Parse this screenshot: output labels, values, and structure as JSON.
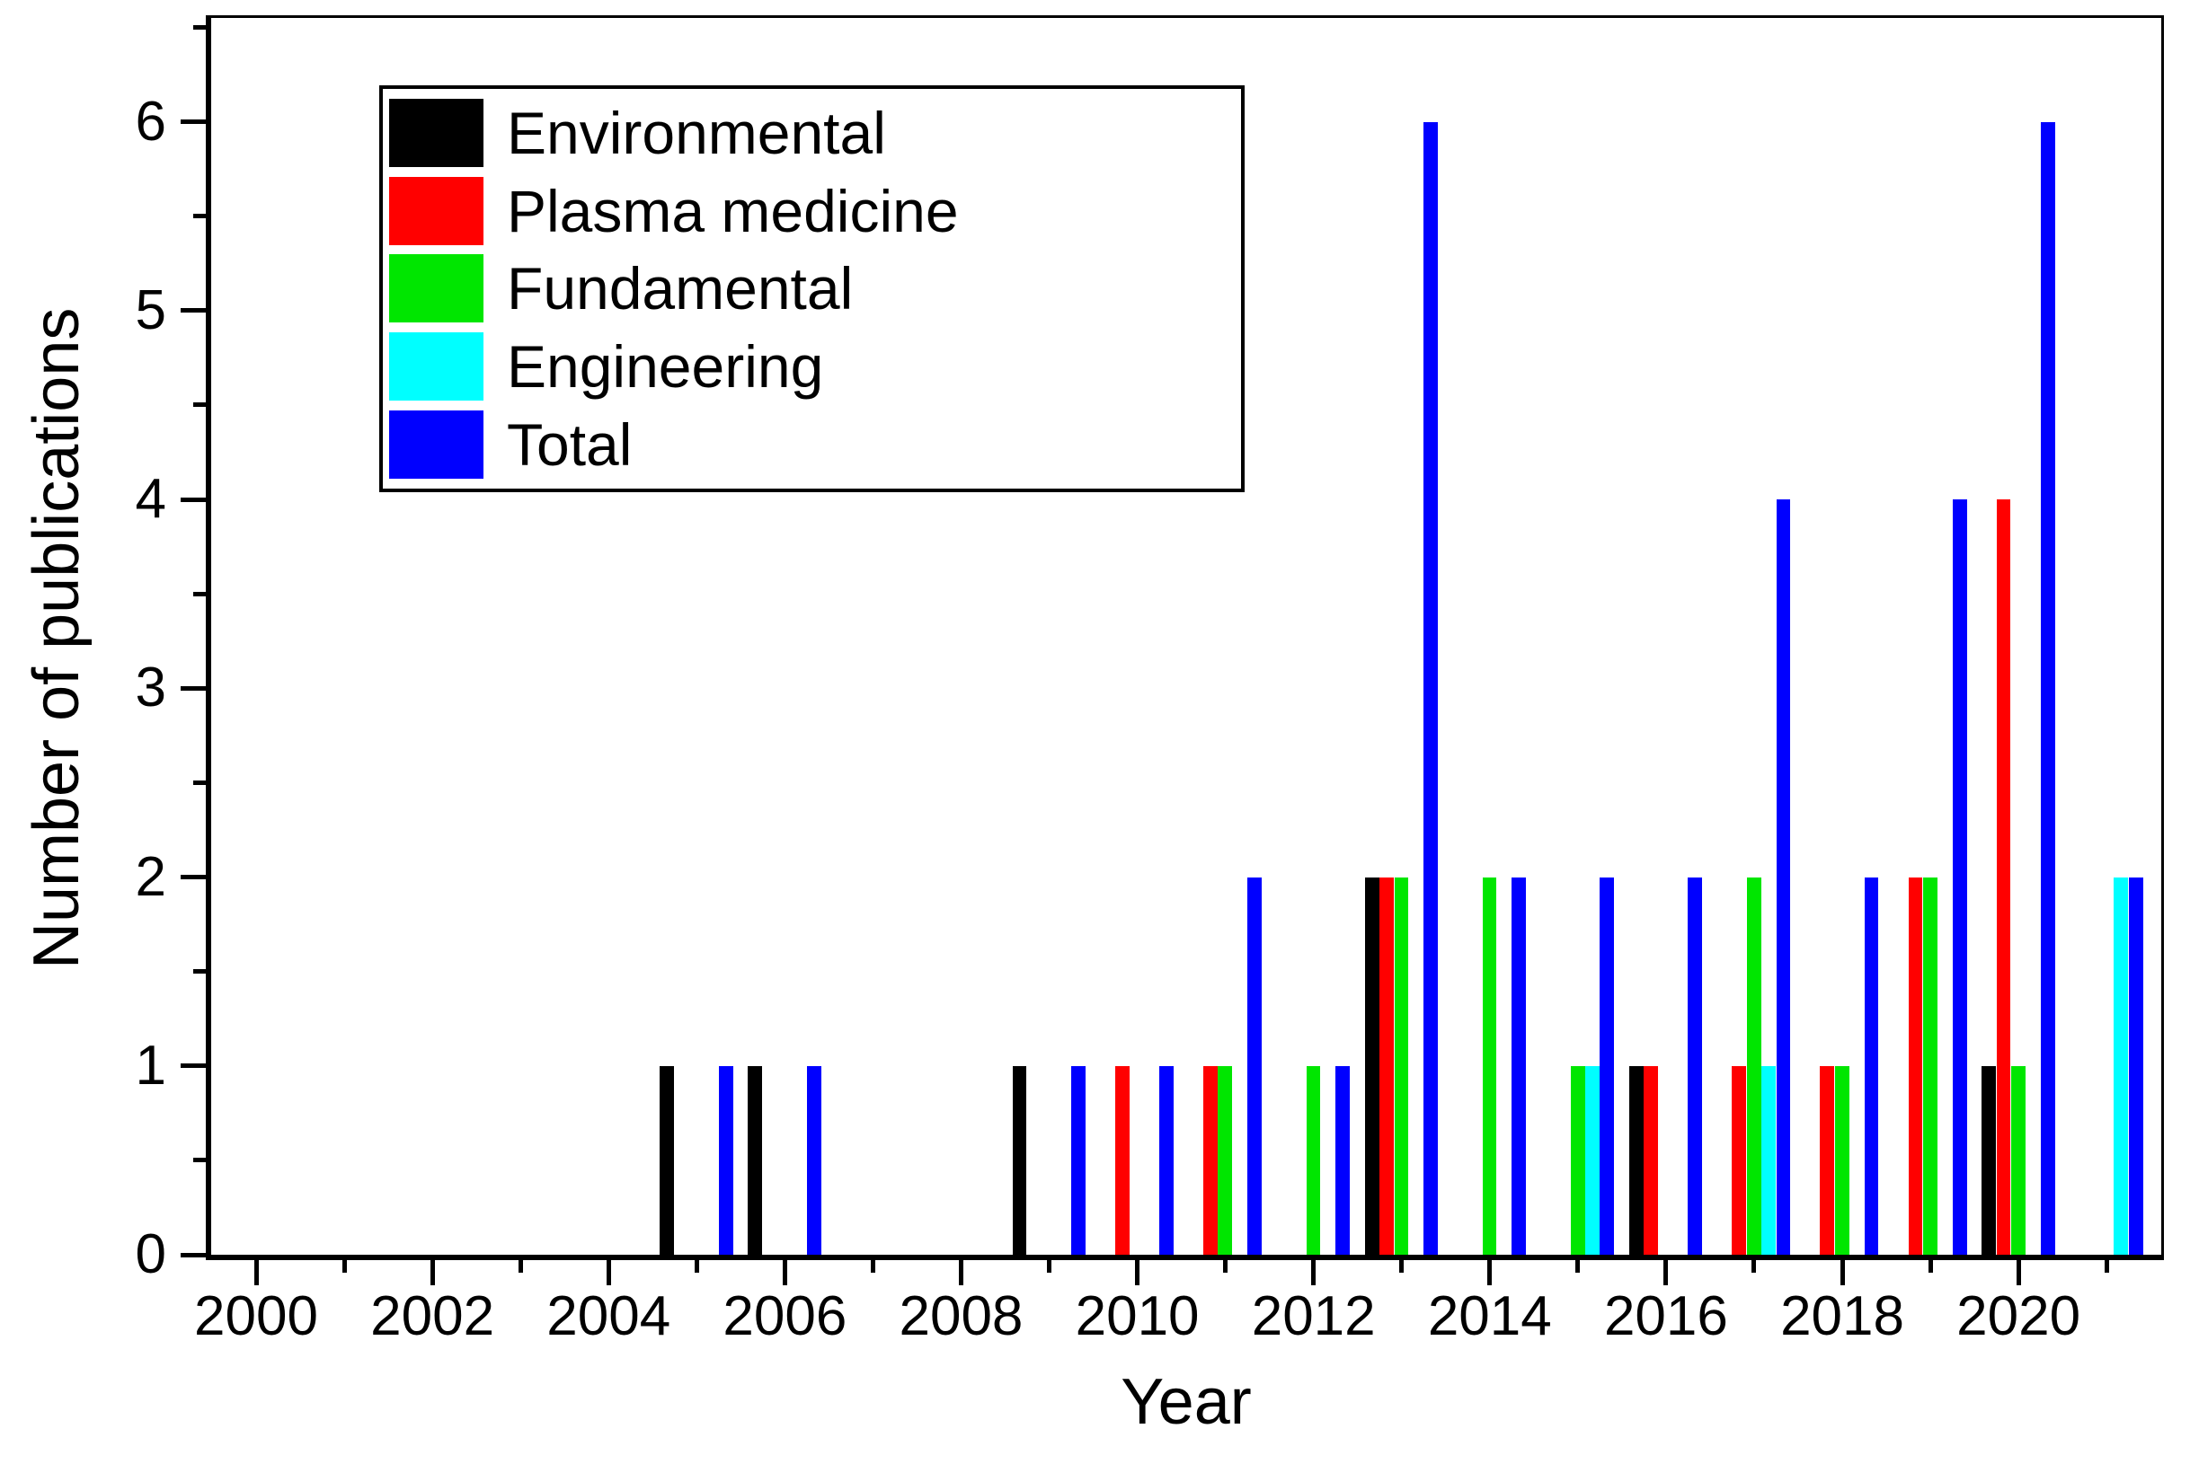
{
  "chart_data": {
    "type": "bar",
    "title": "",
    "xlabel": "Year",
    "ylabel": "Number of publications",
    "grid": false,
    "legend_position": "top-left-inside",
    "axis": {
      "x_min": 1999.49,
      "x_max": 2021.62,
      "y_min": 0,
      "y_max": 6.55,
      "x_major_ticks": [
        2000,
        2002,
        2004,
        2006,
        2008,
        2010,
        2012,
        2014,
        2016,
        2018,
        2020
      ],
      "x_minor_ticks": [
        2001,
        2003,
        2005,
        2007,
        2009,
        2011,
        2013,
        2015,
        2017,
        2019,
        2021
      ],
      "y_major_ticks": [
        0,
        1,
        2,
        3,
        4,
        5,
        6
      ],
      "y_minor_ticks": [
        0.5,
        1.5,
        2.5,
        3.5,
        4.5,
        5.5,
        6.5
      ]
    },
    "categories": [
      2000,
      2001,
      2002,
      2003,
      2004,
      2005,
      2006,
      2007,
      2008,
      2009,
      2010,
      2011,
      2012,
      2013,
      2014,
      2015,
      2016,
      2017,
      2018,
      2019,
      2020,
      2021
    ],
    "slot_width_years": 0.167,
    "series": [
      {
        "name": "Environmental",
        "color": "#000000",
        "values": [
          0,
          0,
          0,
          0,
          0,
          1,
          1,
          0,
          0,
          1,
          0,
          0,
          0,
          2,
          0,
          0,
          1,
          0,
          0,
          0,
          1,
          0
        ]
      },
      {
        "name": "Plasma medicine",
        "color": "#ff0000",
        "values": [
          0,
          0,
          0,
          0,
          0,
          0,
          0,
          0,
          0,
          0,
          1,
          1,
          0,
          2,
          0,
          0,
          1,
          1,
          1,
          2,
          4,
          0
        ]
      },
      {
        "name": "Fundamental",
        "color": "#00e600",
        "values": [
          0,
          0,
          0,
          0,
          0,
          0,
          0,
          0,
          0,
          0,
          0,
          1,
          1,
          2,
          2,
          1,
          0,
          2,
          1,
          2,
          1,
          0
        ]
      },
      {
        "name": "Engineering",
        "color": "#00ffff",
        "values": [
          0,
          0,
          0,
          0,
          0,
          0,
          0,
          0,
          0,
          0,
          0,
          0,
          0,
          0,
          0,
          1,
          0,
          1,
          0,
          0,
          0,
          2
        ]
      },
      {
        "name": "Total",
        "color": "#0000ff",
        "values": [
          0,
          0,
          0,
          0,
          0,
          1,
          1,
          0,
          0,
          1,
          1,
          2,
          1,
          6,
          2,
          2,
          2,
          4,
          2,
          4,
          6,
          2
        ]
      }
    ]
  }
}
